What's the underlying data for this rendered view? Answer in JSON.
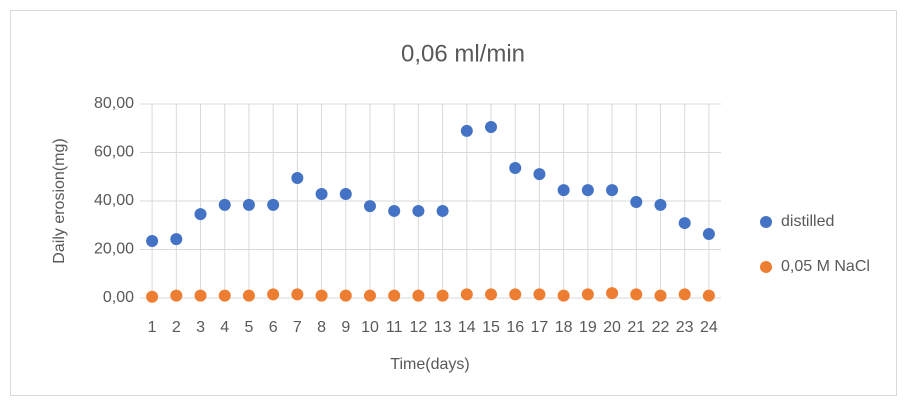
{
  "chart_data": {
    "type": "scatter",
    "title": "0,06 ml/min",
    "x_label": "Time(days)",
    "y_label": "Daily erosion(mg)",
    "categories": [
      "1",
      "2",
      "3",
      "4",
      "5",
      "6",
      "7",
      "8",
      "9",
      "10",
      "11",
      "12",
      "13",
      "14",
      "15",
      "16",
      "17",
      "18",
      "19",
      "20",
      "21",
      "22",
      "23",
      "24"
    ],
    "series": [
      {
        "name": "distilled",
        "color": "#4472c4",
        "values": [
          23.5,
          24.3,
          34.6,
          38.4,
          38.4,
          38.4,
          49.5,
          42.9,
          42.9,
          37.9,
          35.9,
          35.9,
          35.9,
          68.9,
          70.5,
          53.6,
          51.1,
          44.5,
          44.5,
          44.5,
          39.6,
          38.4,
          30.9,
          26.4
        ]
      },
      {
        "name": "0,05 M NaCl",
        "color": "#ed7d31",
        "values": [
          0.5,
          1,
          1,
          1,
          1,
          1.5,
          1.5,
          1,
          1,
          1,
          1,
          1,
          1,
          1.5,
          1.5,
          1.5,
          1.5,
          1,
          1.5,
          2,
          1.5,
          1,
          1.5,
          1
        ]
      }
    ],
    "ylim": [
      0,
      80
    ],
    "yticks": [
      {
        "value": 0,
        "label": "0,00"
      },
      {
        "value": 20,
        "label": "20,00"
      },
      {
        "value": 40,
        "label": "40,00"
      },
      {
        "value": 60,
        "label": "60,00"
      },
      {
        "value": 80,
        "label": "80,00"
      }
    ],
    "grid": true,
    "legend": "right"
  }
}
